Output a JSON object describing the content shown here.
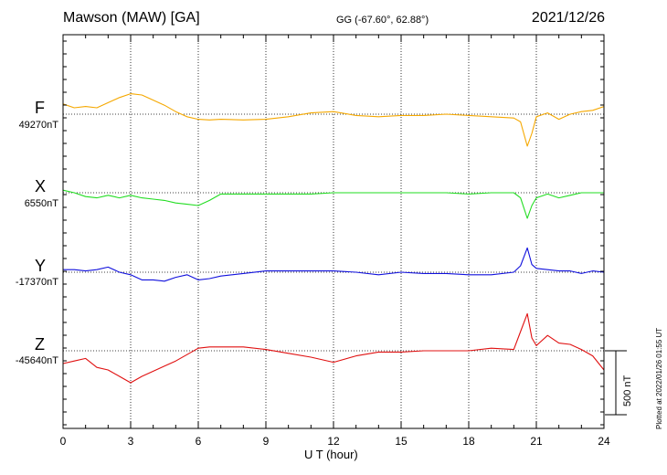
{
  "header": {
    "station": "Mawson (MAW)  [GA]",
    "coords": "GG (-67.60°,  62.88°)",
    "date": "2021/12/26"
  },
  "footer": {
    "plotted": "Plotted at 2022/01/26 01:55 UT"
  },
  "colors": {
    "F": "#f5a800",
    "X": "#22dd22",
    "Y": "#1010dd",
    "Z": "#e01010",
    "axis": "#000000"
  },
  "chart_data": {
    "type": "line",
    "xlabel": "U T (hour)",
    "xlim": [
      0,
      24
    ],
    "x_ticks": [
      "0",
      "3",
      "6",
      "9",
      "12",
      "15",
      "18",
      "21",
      "24"
    ],
    "scale_bar_nT": 500,
    "scale_label": "500 nT",
    "hours": [
      0,
      0.5,
      1.0,
      1.5,
      2.0,
      2.5,
      3.0,
      3.5,
      4.0,
      4.5,
      5.0,
      5.5,
      6.0,
      6.5,
      7.0,
      8.0,
      9.0,
      10.0,
      11.0,
      12.0,
      13.0,
      14.0,
      15.0,
      16.0,
      17.0,
      18.0,
      19.0,
      20.0,
      20.3,
      20.6,
      20.8,
      21.0,
      21.5,
      22.0,
      22.5,
      23.0,
      23.5,
      24.0
    ],
    "series": [
      {
        "name": "F",
        "baseline_label": "49270nT",
        "values": [
          80,
          50,
          60,
          50,
          90,
          130,
          160,
          150,
          110,
          70,
          20,
          -20,
          -40,
          -45,
          -40,
          -45,
          -40,
          -20,
          10,
          20,
          -10,
          -20,
          -10,
          -10,
          0,
          -10,
          -20,
          -30,
          -60,
          -250,
          -150,
          -20,
          10,
          -40,
          0,
          20,
          30,
          60
        ]
      },
      {
        "name": "X",
        "baseline_label": "6550nT",
        "values": [
          20,
          0,
          -30,
          -40,
          -20,
          -40,
          -20,
          -40,
          -50,
          -60,
          -80,
          -90,
          -100,
          -60,
          -10,
          -10,
          -10,
          -10,
          -10,
          0,
          0,
          0,
          0,
          0,
          0,
          -10,
          0,
          0,
          -40,
          -200,
          -100,
          -40,
          -10,
          -40,
          -20,
          0,
          0,
          0
        ]
      },
      {
        "name": "Y",
        "baseline_label": "-17370nT",
        "values": [
          20,
          20,
          10,
          20,
          40,
          0,
          -20,
          -60,
          -60,
          -70,
          -40,
          -20,
          -60,
          -50,
          -30,
          -10,
          10,
          10,
          10,
          10,
          0,
          -20,
          0,
          -10,
          -10,
          -20,
          -20,
          0,
          50,
          190,
          60,
          30,
          20,
          10,
          10,
          -10,
          10,
          0
        ]
      },
      {
        "name": "Z",
        "baseline_label": "-45640nT",
        "values": [
          -100,
          -80,
          -60,
          -130,
          -150,
          -200,
          -250,
          -200,
          -160,
          -120,
          -80,
          -30,
          20,
          30,
          30,
          30,
          10,
          -20,
          -50,
          -90,
          -40,
          -10,
          -10,
          0,
          0,
          0,
          20,
          10,
          150,
          290,
          100,
          40,
          120,
          60,
          50,
          10,
          -40,
          -150
        ]
      }
    ]
  }
}
